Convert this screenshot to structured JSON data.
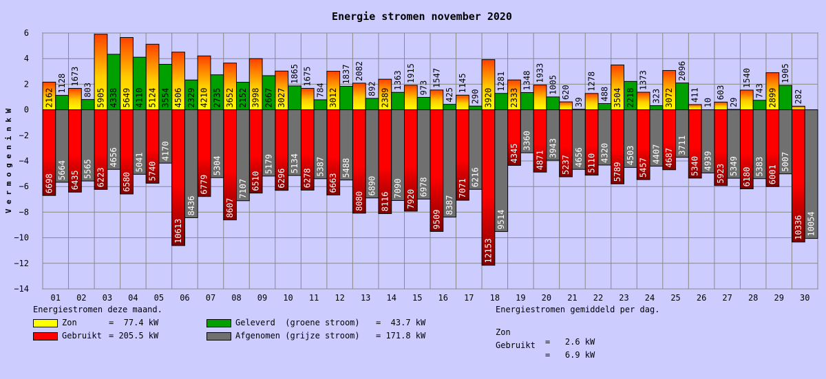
{
  "chart_data": {
    "type": "bar",
    "title": "Energie stromen november 2020",
    "xlabel": "",
    "ylabel": "V e r m o g e n   i n   k W",
    "ylim": [
      -14,
      6
    ],
    "yticks": [
      "6",
      "4",
      "2",
      "0",
      "−2",
      "−4",
      "−6",
      "−8",
      "−10",
      "−12",
      "−14"
    ],
    "categories": [
      "01",
      "02",
      "03",
      "04",
      "05",
      "06",
      "07",
      "08",
      "09",
      "10",
      "11",
      "12",
      "13",
      "14",
      "15",
      "16",
      "17",
      "18",
      "19",
      "20",
      "21",
      "22",
      "23",
      "24",
      "25",
      "26",
      "27",
      "28",
      "29",
      "30"
    ],
    "series": [
      {
        "name": "Zon",
        "sign": 1,
        "color": "#ffff00",
        "color_top": "#ff4000",
        "values": [
          2162,
          1673,
          5905,
          5649,
          5124,
          4506,
          4210,
          3652,
          3998,
          3027,
          1675,
          3012,
          2082,
          2389,
          1915,
          1547,
          1145,
          3920,
          2333,
          1933,
          620,
          1278,
          3504,
          1373,
          3072,
          411,
          603,
          1540,
          2899,
          282
        ],
        "labels": [
          "2162",
          "1673",
          "5905",
          "5649",
          "5124",
          "4506",
          "4210",
          "3652",
          "3998",
          "3027",
          "1675",
          "3012",
          "2082",
          "2389",
          "1915",
          "1547",
          "1145",
          "3920",
          "2333",
          "1933",
          "620",
          "1278",
          "3504",
          "1373",
          "3072",
          "411",
          "603",
          "1540",
          "2899",
          "282"
        ]
      },
      {
        "name": "Geleverd",
        "sign": 1,
        "color": "#00a000",
        "values": [
          1128,
          803,
          4338,
          4110,
          3554,
          2329,
          2735,
          2152,
          2667,
          1865,
          784,
          1837,
          892,
          1363,
          973,
          425,
          290,
          1281,
          1348,
          1005,
          39,
          488,
          2218,
          323,
          2096,
          10,
          29,
          743,
          1905,
          0
        ],
        "labels": [
          "1128",
          "803",
          "4338",
          "4110",
          "3554",
          "2329",
          "2735",
          "2152",
          "2667",
          "1865",
          "784",
          "1837",
          "892",
          "1363",
          "973",
          "425",
          "290",
          "1281",
          "1348",
          "1005",
          "39",
          "488",
          "2218",
          "323",
          "2096",
          "10",
          "29",
          "743",
          "1905",
          ""
        ]
      },
      {
        "name": "Gebruikt",
        "sign": -1,
        "color": "#ff0000",
        "color_deep": "#800000",
        "values": [
          6698,
          6435,
          6223,
          6580,
          5740,
          10613,
          6779,
          8607,
          6510,
          6296,
          6278,
          6663,
          8080,
          8116,
          7920,
          9509,
          7071,
          12153,
          4345,
          4871,
          5237,
          5110,
          5789,
          5457,
          4687,
          5340,
          5923,
          6180,
          6001,
          10336
        ],
        "labels": [
          "6698",
          "6435",
          "6223",
          "6580",
          "5740",
          "10613",
          "6779",
          "8607",
          "6510",
          "6296",
          "6278",
          "6663",
          "8080",
          "8116",
          "7920",
          "9509",
          "7071",
          "12153",
          "4345",
          "4871",
          "5237",
          "5110",
          "5789",
          "5457",
          "4687",
          "5340",
          "5923",
          "6180",
          "6001",
          "10336"
        ]
      },
      {
        "name": "Afgenomen",
        "sign": -1,
        "color": "#707070",
        "values": [
          5664,
          5565,
          4656,
          5041,
          4170,
          8436,
          5304,
          7107,
          5179,
          5134,
          5387,
          5488,
          6890,
          7090,
          6978,
          8387,
          6216,
          9514,
          3360,
          3943,
          4656,
          4320,
          4503,
          4407,
          3711,
          4939,
          5349,
          5383,
          5007,
          10054
        ],
        "labels": [
          "5664",
          "5565",
          "4656",
          "5041",
          "4170",
          "8436",
          "5304",
          "7107",
          "5179",
          "5134",
          "5387",
          "5488",
          "6890",
          "7090",
          "6978",
          "8387",
          "6216",
          "9514",
          "3360",
          "3943",
          "4656",
          "4320",
          "4503",
          "4407",
          "3711",
          "4939",
          "5349",
          "5383",
          "5007",
          "10054"
        ]
      }
    ]
  },
  "legend": {
    "month_heading": "Energiestromen deze maand.",
    "zon": {
      "label": "Zon",
      "value": "=  77.4 kW",
      "color": "#ffff00"
    },
    "gebruikt": {
      "label": "Gebruikt",
      "value": "= 205.5 kW",
      "color": "#ff0000"
    },
    "geleverd": {
      "label": "Geleverd  (groene stroom)",
      "value": "=  43.7 kW",
      "color": "#00a000"
    },
    "afgenomen": {
      "label": "Afgenomen (grijze stroom)",
      "value": "= 171.8 kW",
      "color": "#707070"
    },
    "daily_heading": "Energiestromen gemiddeld per dag.",
    "daily_zon": {
      "label": "Zon",
      "value": "=   2.6 kW"
    },
    "daily_gebruikt": {
      "label": "Gebruikt",
      "value": "=   6.9 kW"
    }
  }
}
